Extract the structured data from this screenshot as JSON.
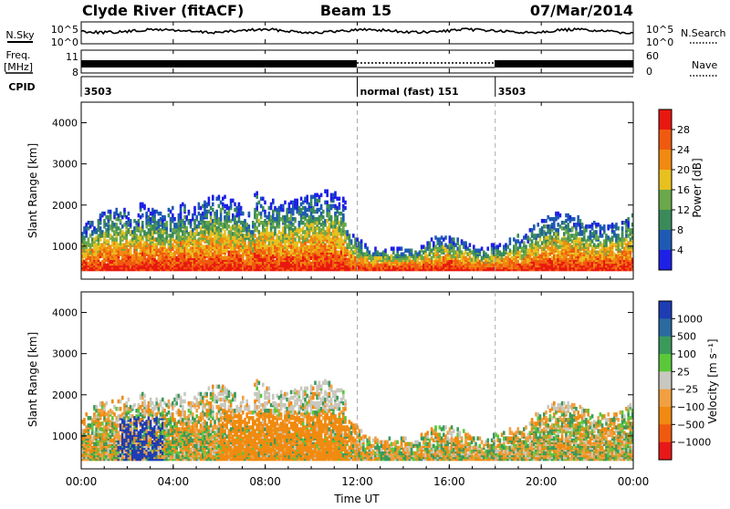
{
  "header": {
    "station": "Clyde River (fitACF)",
    "beam": "Beam 15",
    "date": "07/Mar/2014"
  },
  "strip_labels": {
    "nsky": "N.Sky",
    "nsky_ticks": [
      "10^5",
      "10^0"
    ],
    "nsearch": "N.Search",
    "nsearch_ticks": [
      "10^5",
      "10^0"
    ],
    "freq": "Freq.",
    "freq_unit": "[MHz]",
    "freq_ticks": [
      "11",
      "8"
    ],
    "nave": "Nave",
    "nave_ticks": [
      "60",
      "0"
    ],
    "cpid": "CPID"
  },
  "cpid_segments": [
    {
      "label": "3503",
      "start_hour": 0
    },
    {
      "label": "normal (fast) 151",
      "start_hour": 12
    },
    {
      "label": "3503",
      "start_hour": 18
    }
  ],
  "chart_data": [
    {
      "type": "heatmap",
      "name": "power",
      "x_range_hours": [
        0,
        24
      ],
      "ylabel": "Slant Range [km]",
      "ylim": [
        200,
        4500
      ],
      "y_ticks": [
        "1000",
        "2000",
        "3000",
        "4000"
      ],
      "colorbar_label": "Power [dB]",
      "colorbar_ticks": [
        "28",
        "24",
        "20",
        "16",
        "12",
        "8",
        "4"
      ],
      "colors": [
        "#1e20e6",
        "#1e5ab4",
        "#3a8a5a",
        "#6aa84a",
        "#e8c020",
        "#f08a10",
        "#f05a10",
        "#e81810"
      ]
    },
    {
      "type": "heatmap",
      "name": "velocity",
      "x_range_hours": [
        0,
        24
      ],
      "ylabel": "Slant Range [km]",
      "ylim": [
        200,
        4500
      ],
      "y_ticks": [
        "1000",
        "2000",
        "3000",
        "4000"
      ],
      "colorbar_label": "Velocity [m s⁻¹]",
      "colorbar_ticks": [
        "1000",
        "500",
        "100",
        "25",
        "−25",
        "−100",
        "−500",
        "−1000"
      ],
      "colors": [
        "#e81818",
        "#f05a10",
        "#f08a10",
        "#f0a040",
        "#c8c8c0",
        "#5ac83a",
        "#3a9a5a",
        "#2a6aa0",
        "#1e3cb4"
      ]
    }
  ],
  "x_axis": {
    "tick_labels": [
      "00:00",
      "04:00",
      "08:00",
      "12:00",
      "16:00",
      "20:00",
      "00:00"
    ],
    "label": "Time UT"
  }
}
